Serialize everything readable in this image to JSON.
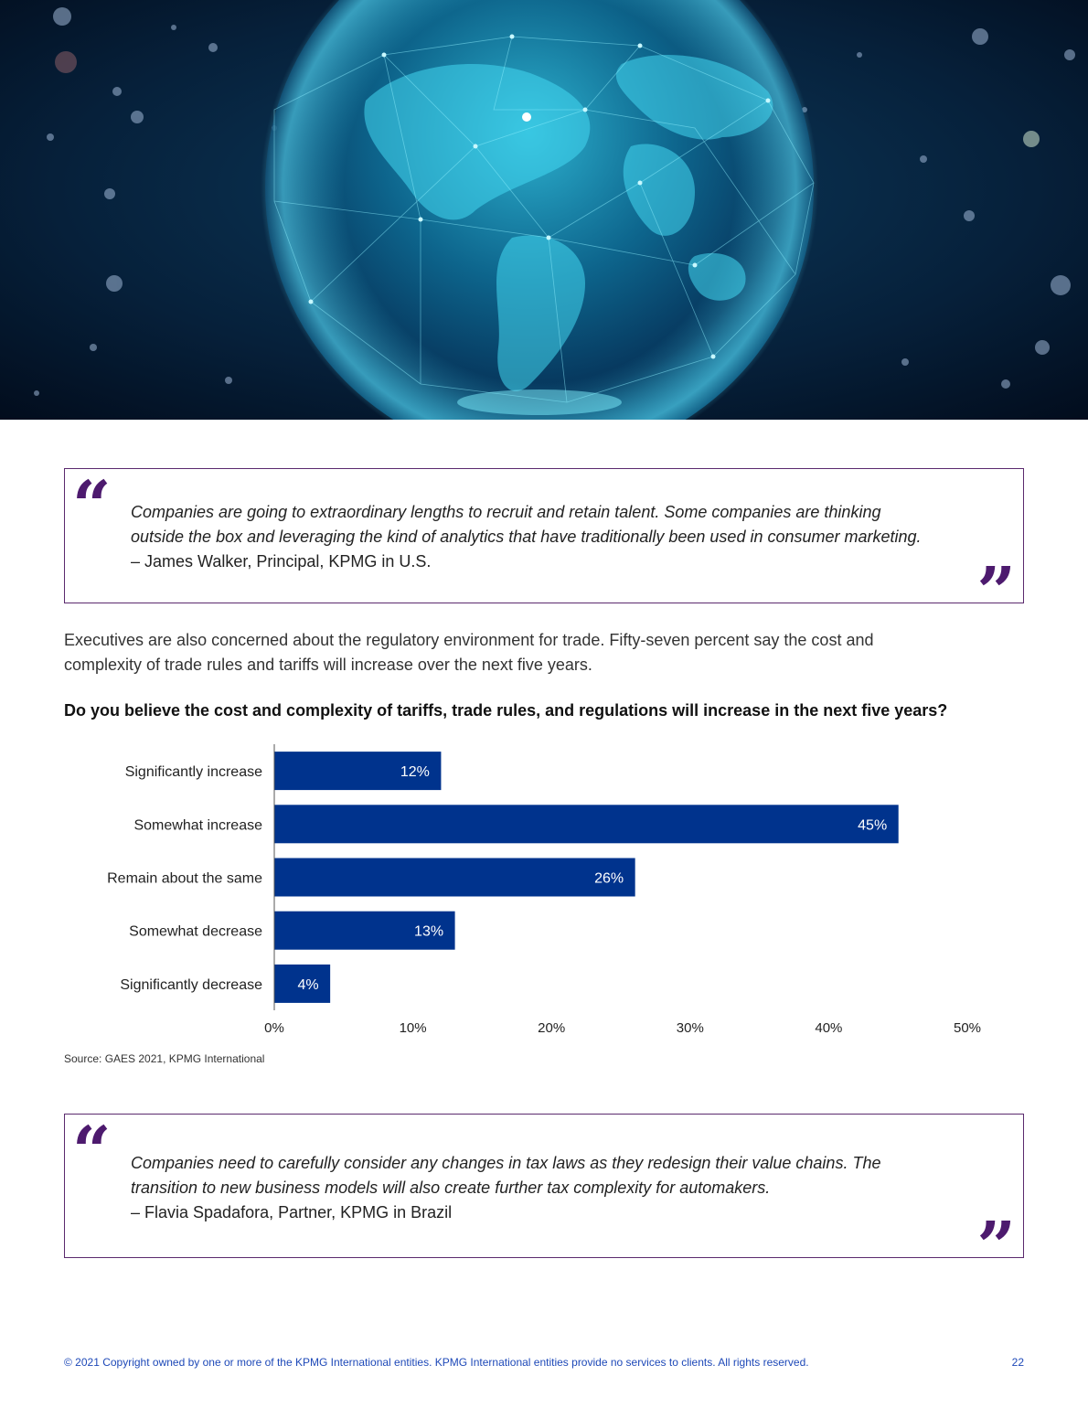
{
  "quote1": {
    "text_lines": [
      "Companies are going to extraordinary lengths to recruit and retain talent. Some companies are thinking",
      "outside the box and leveraging the kind of analytics that have traditionally been used in consumer marketing."
    ],
    "author": "– James Walker, Principal, KPMG in U.S.",
    "open_mark": "“",
    "close_mark": "”"
  },
  "intro_lines": [
    "Executives are also concerned about the regulatory environment for trade. Fifty-seven percent say the cost and",
    "complexity of trade rules and tariffs will increase over the next five years."
  ],
  "chart_title": "Do you believe the cost and complexity of tariffs, trade rules, and regulations will increase in the next five years?",
  "chart_data": {
    "type": "bar",
    "orientation": "horizontal",
    "title": "Do you believe the cost and complexity of tariffs, trade rules, and regulations will increase in the next five years?",
    "categories": [
      "Significantly increase",
      "Somewhat increase",
      "Remain about the same",
      "Somewhat decrease",
      "Significantly decrease"
    ],
    "values": [
      12,
      45,
      26,
      13,
      4
    ],
    "data_labels": [
      "12%",
      "45%",
      "26%",
      "13%",
      "4%"
    ],
    "xlim": [
      0,
      50
    ],
    "xticks": [
      0,
      10,
      20,
      30,
      40,
      50
    ],
    "xtick_labels": [
      "0%",
      "10%",
      "20%",
      "30%",
      "40%",
      "50%"
    ],
    "xlabel": "",
    "ylabel": "",
    "grid": false,
    "bar_color": "#00338d",
    "label_color": "#ffffff"
  },
  "source": "Source: GAES 2021, KPMG International",
  "quote2": {
    "text_lines": [
      "Companies need to carefully consider any changes in tax laws as they redesign their value chains. The",
      "transition to new business models will also create further tax complexity for automakers."
    ],
    "author": "– Flavia Spadafora, Partner, KPMG in Brazil",
    "open_mark": "“",
    "close_mark": "”"
  },
  "footer": {
    "copyright": "© 2021 Copyright owned by one or more of the KPMG International entities. KPMG International entities provide no services to clients. All rights reserved.",
    "page_number": "22"
  },
  "colors": {
    "accent_purple": "#4d1a6e",
    "border_purple": "#5b2a6e",
    "kpmg_blue": "#00338d",
    "footer_blue": "#1e49b8"
  }
}
